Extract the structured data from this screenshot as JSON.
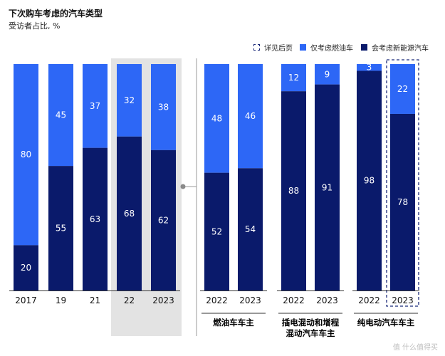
{
  "header": {
    "title": "下次购车考虑的汽车类型",
    "subtitle": "受访者占比, %"
  },
  "legend": {
    "items": [
      {
        "label": "详见后页",
        "kind": "dashed"
      },
      {
        "label": "仅考虑燃油车",
        "color": "#2d67f6"
      },
      {
        "label": "会考虑新能源汽车",
        "color": "#0a1a6b"
      }
    ]
  },
  "watermark": "值 什么值得买",
  "colors": {
    "light": "#2d67f6",
    "dark": "#0a1a6b",
    "panel_highlight": "#e3e3e3"
  },
  "chart_data": {
    "type": "bar",
    "stacked": true,
    "percent": true,
    "series_order": [
      "会考虑新能源汽车",
      "仅考虑燃油车"
    ],
    "groups": [
      {
        "label": "",
        "bars": [
          {
            "x": "2017",
            "nev": 20,
            "ice_only": 80
          },
          {
            "x": "19",
            "nev": 55,
            "ice_only": 45
          },
          {
            "x": "21",
            "nev": 63,
            "ice_only": 37
          },
          {
            "x": "22",
            "nev": 68,
            "ice_only": 32,
            "highlight": true
          },
          {
            "x": "2023",
            "nev": 62,
            "ice_only": 38,
            "highlight": true
          }
        ]
      },
      {
        "label": "燃油车车主",
        "bars": [
          {
            "x": "2022",
            "nev": 52,
            "ice_only": 48
          },
          {
            "x": "2023",
            "nev": 54,
            "ice_only": 46
          }
        ]
      },
      {
        "label": "插电混动和增程混动汽车车主",
        "bars": [
          {
            "x": "2022",
            "nev": 88,
            "ice_only": 12
          },
          {
            "x": "2023",
            "nev": 91,
            "ice_only": 9
          }
        ]
      },
      {
        "label": "纯电动汽车车主",
        "bars": [
          {
            "x": "2022",
            "nev": 98,
            "ice_only": 3
          },
          {
            "x": "2023",
            "nev": 78,
            "ice_only": 22,
            "dashed": true
          }
        ]
      }
    ]
  }
}
